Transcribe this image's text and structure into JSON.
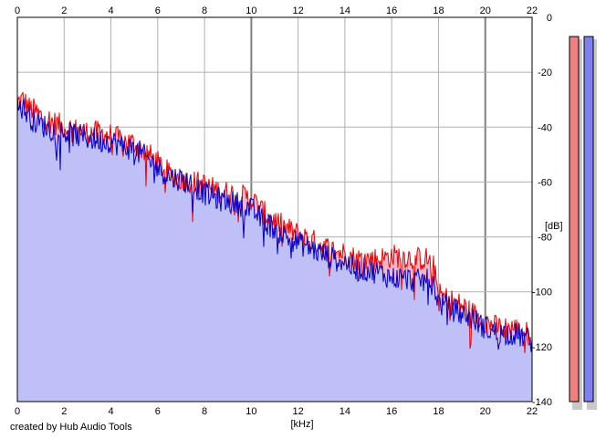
{
  "credit": "created by Hub Audio Tools",
  "chart_data": {
    "type": "area",
    "xlabel": "[kHz]",
    "ylabel": "[dB]",
    "xlim": [
      0,
      22
    ],
    "ylim": [
      -140,
      0
    ],
    "x_ticks": [
      0,
      2,
      4,
      6,
      8,
      10,
      12,
      14,
      16,
      18,
      20,
      22
    ],
    "y_ticks": [
      0,
      -20,
      -40,
      -60,
      -80,
      -100,
      -120,
      -140
    ],
    "grid": true,
    "colors": {
      "left_line": "#ee0000",
      "right_line": "#0000cc",
      "left_fill": "#f5b5c5",
      "right_fill": "#c0c0f8",
      "grid": "#b0b0b0",
      "grid_major": "#808080",
      "meter_left": "#f08080",
      "meter_right": "#8080f0"
    },
    "series": [
      {
        "x": [
          0,
          0.25,
          0.5,
          0.75,
          1,
          1.5,
          2,
          2.5,
          3,
          3.5,
          4,
          4.5,
          5,
          5.5,
          6,
          6.5,
          7,
          7.5,
          8,
          8.5,
          9,
          9.5,
          10,
          10.5,
          11,
          11.5,
          12,
          12.5,
          13,
          13.5,
          14,
          14.5,
          15,
          15.5,
          16,
          16.5,
          17,
          17.5,
          17.8,
          18,
          18.5,
          19,
          19.5,
          20,
          20.5,
          21,
          21.5,
          22
        ],
        "values": [
          -31,
          -30,
          -33,
          -34,
          -36,
          -38,
          -40,
          -41,
          -42,
          -42,
          -43,
          -45,
          -46,
          -49,
          -53,
          -57,
          -59,
          -60,
          -61,
          -63,
          -64,
          -65,
          -66,
          -71,
          -74,
          -77,
          -79,
          -81,
          -83,
          -85,
          -86,
          -88,
          -88,
          -88,
          -87,
          -87,
          -88,
          -88,
          -91,
          -101,
          -103,
          -105,
          -108,
          -111,
          -113,
          -113,
          -114,
          -116
        ]
      },
      {
        "x": [
          0,
          0.25,
          0.5,
          0.75,
          1,
          1.5,
          2,
          2.5,
          3,
          3.5,
          4,
          4.5,
          5,
          5.5,
          6,
          6.5,
          7,
          7.5,
          8,
          8.5,
          9,
          9.5,
          10,
          10.5,
          11,
          11.5,
          12,
          12.5,
          13,
          13.5,
          14,
          14.5,
          15,
          15.5,
          16,
          16.5,
          17,
          17.5,
          17.8,
          18,
          18.5,
          19,
          19.5,
          20,
          20.5,
          21,
          21.5,
          22
        ],
        "values": [
          -32,
          -33,
          -36,
          -38,
          -39,
          -41,
          -42,
          -43,
          -44,
          -45,
          -45,
          -47,
          -48,
          -51,
          -55,
          -58,
          -59,
          -61,
          -64,
          -66,
          -67,
          -68,
          -70,
          -74,
          -77,
          -80,
          -82,
          -84,
          -86,
          -88,
          -89,
          -92,
          -92,
          -93,
          -95,
          -95,
          -96,
          -96,
          -97,
          -104,
          -106,
          -108,
          -110,
          -113,
          -115,
          -115,
          -116,
          -118
        ]
      }
    ],
    "level_meters": [
      -7,
      -7
    ]
  }
}
